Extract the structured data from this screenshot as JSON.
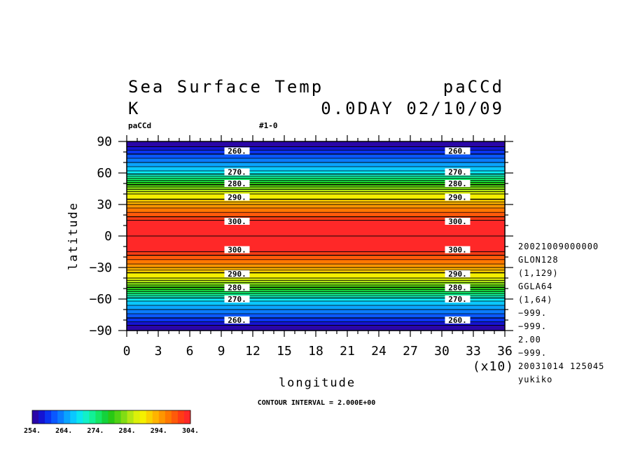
{
  "header": {
    "title": "Sea Surface Temp",
    "run_name": "paCCd",
    "units": "K",
    "time_label": "0.0DAY 02/10/09",
    "panel_tag": "paCCd",
    "panel_id": "#1-0"
  },
  "chart_data": {
    "type": "contour",
    "title": "Sea Surface Temp",
    "xlabel": "longitude",
    "ylabel": "latitude",
    "xlim": [
      0,
      36
    ],
    "ylim": [
      -90,
      90
    ],
    "x_scale_note": "(x10)",
    "x_ticks": [
      0,
      3,
      6,
      9,
      12,
      15,
      18,
      21,
      24,
      27,
      30,
      33,
      36
    ],
    "x_tick_labels": [
      "0",
      "3",
      "6",
      "9",
      "12",
      "15",
      "18",
      "21",
      "24",
      "27",
      "30",
      "33",
      "36"
    ],
    "y_ticks": [
      90,
      60,
      30,
      0,
      -30,
      -60,
      -90
    ],
    "y_tick_labels": [
      "90",
      "60",
      "30",
      "0",
      "−30",
      "−60",
      "−90"
    ],
    "field_profile": {
      "lat": [
        90,
        85,
        80,
        70,
        60,
        50,
        40,
        35,
        30,
        25,
        20,
        15,
        0,
        -15,
        -20,
        -25,
        -30,
        -35,
        -40,
        -50,
        -60,
        -70,
        -80,
        -85,
        -90
      ],
      "value": [
        254,
        256,
        259,
        264,
        269,
        279,
        288,
        290,
        294,
        297,
        299,
        302,
        304,
        302,
        299,
        297,
        294,
        290,
        288,
        279,
        269,
        264,
        259,
        256,
        254
      ]
    },
    "contour_interval": 2.0,
    "labeled_contours": [
      {
        "label": "260.",
        "lat": 81
      },
      {
        "label": "270.",
        "lat": 61
      },
      {
        "label": "280.",
        "lat": 50
      },
      {
        "label": "290.",
        "lat": 37
      },
      {
        "label": "300.",
        "lat": 14
      },
      {
        "label": "300.",
        "lat": -13
      },
      {
        "label": "290.",
        "lat": -36
      },
      {
        "label": "280.",
        "lat": -49
      },
      {
        "label": "270.",
        "lat": -60
      },
      {
        "label": "260.",
        "lat": -80
      }
    ],
    "label_columns_lon": [
      10.5,
      31.5
    ],
    "colorbar": {
      "min": 254,
      "max": 304,
      "tick_labels": [
        "254.",
        "264.",
        "274.",
        "284.",
        "294.",
        "304."
      ],
      "colors": [
        "#2a06a8",
        "#1414d2",
        "#0a34f0",
        "#0a58ff",
        "#0a7cff",
        "#0aa4ff",
        "#0ac8ff",
        "#0ae6f0",
        "#12f0c8",
        "#12f096",
        "#14e664",
        "#14d23c",
        "#28c814",
        "#50d214",
        "#82dc14",
        "#b4e614",
        "#dcf00a",
        "#f5f000",
        "#fad200",
        "#ffb400",
        "#ff9600",
        "#ff7800",
        "#ff5a0a",
        "#ff3c14",
        "#ff2828"
      ]
    },
    "contour_interval_text": "CONTOUR INTERVAL = 2.000E+00"
  },
  "info_panel": {
    "lines": [
      "20021009000000",
      "GLON128",
      "(1,129)",
      "GGLA64",
      "(1,64)",
      "−999.",
      "−999.",
      "2.00",
      "−999.",
      "20031014 125045",
      "yukiko"
    ]
  }
}
